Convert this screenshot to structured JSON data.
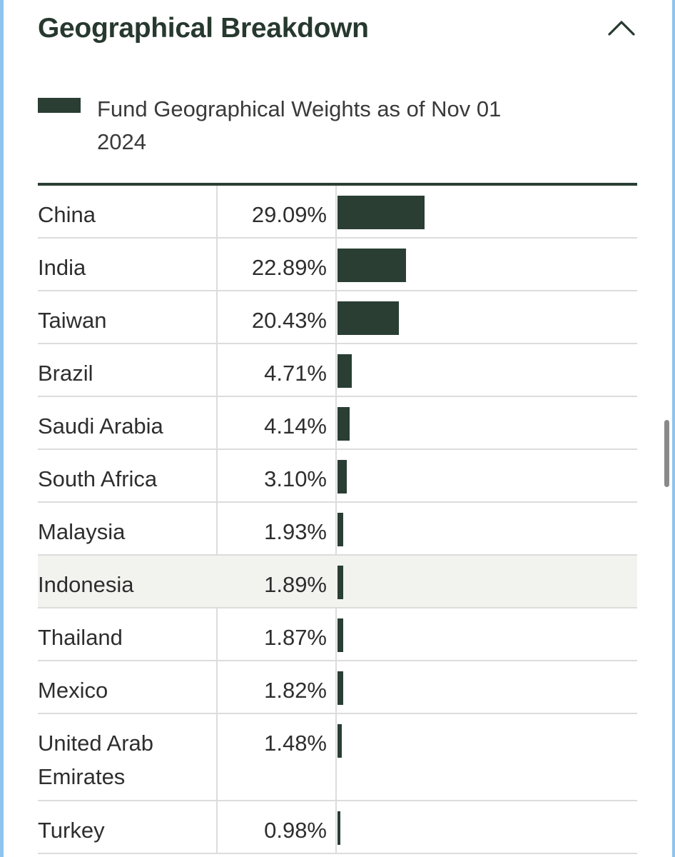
{
  "section": {
    "title": "Geographical Breakdown",
    "toggle_icon": "chevron-up-icon"
  },
  "legend": {
    "label": "Fund Geographical Weights as of Nov 01 2024",
    "color": "#2a3e33"
  },
  "colors": {
    "bar": "#2a3e33",
    "title": "#27392f",
    "highlight_row": "#f2f2ef",
    "frame": "#8ec4ee"
  },
  "chart_data": {
    "type": "bar",
    "orientation": "horizontal",
    "categories": [
      "China",
      "India",
      "Taiwan",
      "Brazil",
      "Saudi Arabia",
      "South Africa",
      "Malaysia",
      "Indonesia",
      "Thailand",
      "Mexico",
      "United Arab Emirates",
      "Turkey"
    ],
    "values": [
      29.09,
      22.89,
      20.43,
      4.71,
      4.14,
      3.1,
      1.93,
      1.89,
      1.87,
      1.82,
      1.48,
      0.98
    ],
    "value_labels": [
      "29.09%",
      "22.89%",
      "20.43%",
      "4.71%",
      "4.14%",
      "3.10%",
      "1.93%",
      "1.89%",
      "1.87%",
      "1.82%",
      "1.48%",
      "0.98%"
    ],
    "highlighted_category": "Indonesia"
  }
}
